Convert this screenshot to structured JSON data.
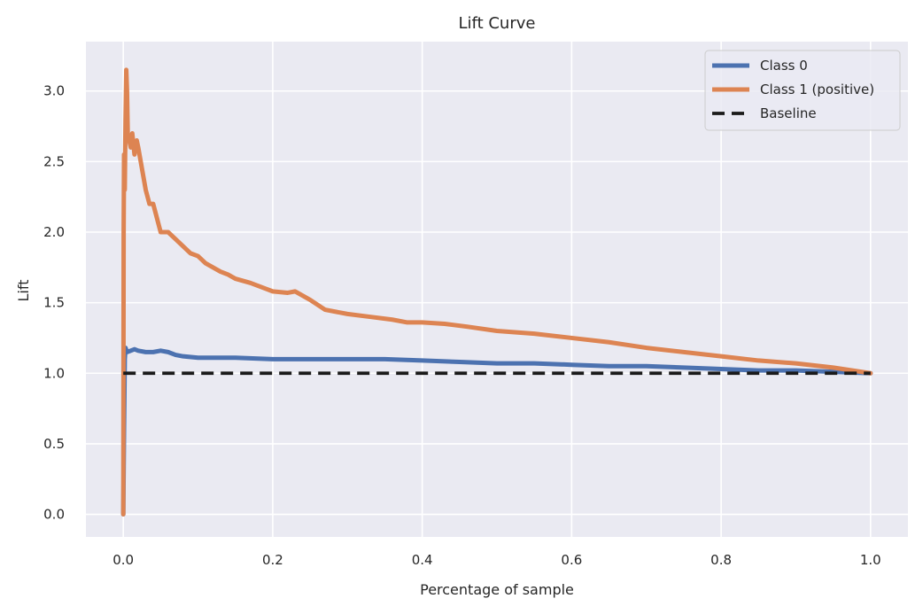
{
  "chart_data": {
    "type": "line",
    "title": "Lift Curve",
    "xlabel": "Percentage of sample",
    "ylabel": "Lift",
    "xlim": [
      -0.05,
      1.05
    ],
    "ylim": [
      -0.16,
      3.35
    ],
    "x_ticks": [
      0.0,
      0.2,
      0.4,
      0.6,
      0.8,
      1.0
    ],
    "x_tick_labels": [
      "0.0",
      "0.2",
      "0.4",
      "0.6",
      "0.8",
      "1.0"
    ],
    "y_ticks": [
      0.0,
      0.5,
      1.0,
      1.5,
      2.0,
      2.5,
      3.0
    ],
    "y_tick_labels": [
      "0.0",
      "0.5",
      "1.0",
      "1.5",
      "2.0",
      "2.5",
      "3.0"
    ],
    "grid": true,
    "legend_position": "top-right",
    "colors": {
      "background": "#eaeaf2",
      "grid": "#ffffff",
      "text": "#262626",
      "legend_border": "#cccccc"
    },
    "series": [
      {
        "name": "Class 0",
        "color": "#4c72b0",
        "style": "solid",
        "x": [
          0.0,
          0.001,
          0.002,
          0.003,
          0.005,
          0.01,
          0.015,
          0.02,
          0.03,
          0.04,
          0.05,
          0.06,
          0.07,
          0.08,
          0.1,
          0.12,
          0.15,
          0.2,
          0.25,
          0.3,
          0.35,
          0.4,
          0.45,
          0.5,
          0.55,
          0.6,
          0.65,
          0.7,
          0.75,
          0.8,
          0.85,
          0.9,
          0.95,
          1.0
        ],
        "y": [
          0.0,
          0.6,
          1.1,
          1.18,
          1.15,
          1.16,
          1.17,
          1.16,
          1.15,
          1.15,
          1.16,
          1.15,
          1.13,
          1.12,
          1.11,
          1.11,
          1.11,
          1.1,
          1.1,
          1.1,
          1.1,
          1.09,
          1.08,
          1.07,
          1.07,
          1.06,
          1.05,
          1.05,
          1.04,
          1.03,
          1.02,
          1.02,
          1.01,
          1.0
        ]
      },
      {
        "name": "Class 1 (positive)",
        "color": "#dd8452",
        "style": "solid",
        "x": [
          0.0,
          0.0005,
          0.001,
          0.002,
          0.003,
          0.004,
          0.005,
          0.006,
          0.008,
          0.01,
          0.012,
          0.015,
          0.018,
          0.02,
          0.025,
          0.03,
          0.035,
          0.04,
          0.045,
          0.05,
          0.06,
          0.07,
          0.08,
          0.09,
          0.1,
          0.11,
          0.12,
          0.13,
          0.14,
          0.15,
          0.17,
          0.19,
          0.2,
          0.22,
          0.23,
          0.25,
          0.27,
          0.3,
          0.33,
          0.36,
          0.38,
          0.4,
          0.43,
          0.46,
          0.5,
          0.55,
          0.6,
          0.65,
          0.7,
          0.75,
          0.8,
          0.85,
          0.9,
          0.95,
          1.0
        ],
        "y": [
          0.0,
          2.0,
          2.55,
          2.3,
          2.8,
          3.15,
          3.0,
          2.7,
          2.65,
          2.6,
          2.7,
          2.55,
          2.65,
          2.6,
          2.45,
          2.3,
          2.2,
          2.2,
          2.1,
          2.0,
          2.0,
          1.95,
          1.9,
          1.85,
          1.83,
          1.78,
          1.75,
          1.72,
          1.7,
          1.67,
          1.64,
          1.6,
          1.58,
          1.57,
          1.58,
          1.52,
          1.45,
          1.42,
          1.4,
          1.38,
          1.36,
          1.36,
          1.35,
          1.33,
          1.3,
          1.28,
          1.25,
          1.22,
          1.18,
          1.15,
          1.12,
          1.09,
          1.07,
          1.04,
          1.0
        ]
      },
      {
        "name": "Baseline",
        "color": "#1a1a1a",
        "style": "dashed",
        "x": [
          0.0,
          1.0
        ],
        "y": [
          1.0,
          1.0
        ]
      }
    ]
  }
}
